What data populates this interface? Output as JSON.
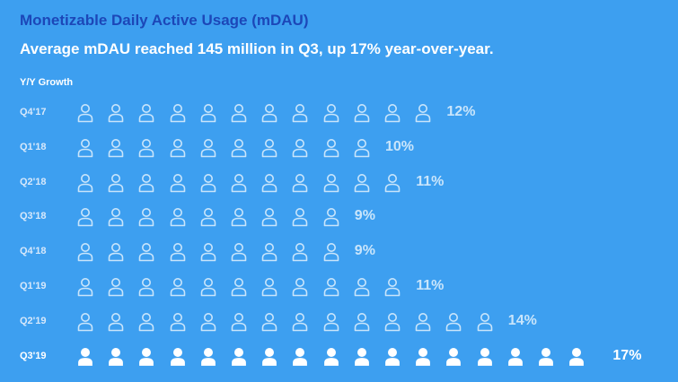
{
  "header": {
    "title": "Monetizable Daily Active Usage (mDAU)",
    "subtitle": "Average mDAU reached 145 million in Q3, up 17% year-over-year."
  },
  "colors": {
    "background": "#3d9ff0",
    "title": "#1c47b8",
    "outline_icon": "#c9e5fb",
    "highlight_icon": "#ffffff"
  },
  "chart_data": {
    "type": "bar",
    "ylabel": "Y/Y Growth",
    "categories": [
      "Q4'17",
      "Q1'18",
      "Q2'18",
      "Q3'18",
      "Q4'18",
      "Q1'19",
      "Q2'19",
      "Q3'19"
    ],
    "values": [
      12,
      10,
      11,
      9,
      9,
      11,
      14,
      17
    ],
    "value_labels": [
      "12%",
      "10%",
      "11%",
      "9%",
      "9%",
      "11%",
      "14%",
      "17%"
    ],
    "unit": "%",
    "highlight_category": "Q3'19",
    "icon": "person-icon",
    "icon_value": 1
  }
}
